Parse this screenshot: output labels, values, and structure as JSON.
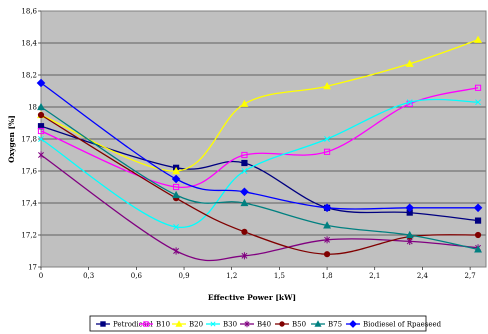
{
  "chart_data": {
    "type": "line",
    "title": "",
    "xlabel": "Effective Power [kW]",
    "ylabel": "Oxygen [%]",
    "xlim": [
      0,
      2.8
    ],
    "ylim": [
      17,
      18.6
    ],
    "x_ticks": [
      "0",
      "0,3",
      "0,6",
      "0,9",
      "1,2",
      "1,5",
      "1,8",
      "2,1",
      "2,4",
      "2,7"
    ],
    "y_ticks": [
      "17",
      "17,2",
      "17,4",
      "17,6",
      "17,8",
      "18",
      "18,2",
      "18,4",
      "18,6"
    ],
    "grid": "horizontal",
    "plot_background": "#c0c0c0",
    "legend_position": "bottom",
    "series": [
      {
        "name": "Petrodiesel",
        "color": "#000080",
        "marker": "square",
        "filled": true,
        "x": [
          0,
          0.85,
          1.28,
          1.8,
          2.32,
          2.75
        ],
        "y": [
          17.88,
          17.62,
          17.65,
          17.37,
          17.34,
          17.29
        ]
      },
      {
        "name": "B10",
        "color": "#ff00ff",
        "marker": "square",
        "filled": false,
        "x": [
          0,
          0.85,
          1.28,
          1.8,
          2.32,
          2.75
        ],
        "y": [
          17.85,
          17.5,
          17.7,
          17.72,
          18.02,
          18.12
        ]
      },
      {
        "name": "B20",
        "color": "#ffff00",
        "marker": "triangle",
        "filled": true,
        "x": [
          0,
          0.85,
          1.28,
          1.8,
          2.32,
          2.75
        ],
        "y": [
          17.95,
          17.6,
          18.02,
          18.13,
          18.27,
          18.42
        ]
      },
      {
        "name": "B30",
        "color": "#00ffff",
        "marker": "cross",
        "filled": false,
        "x": [
          0,
          0.85,
          1.28,
          1.8,
          2.32,
          2.75
        ],
        "y": [
          17.8,
          17.25,
          17.6,
          17.8,
          18.03,
          18.03
        ]
      },
      {
        "name": "B40",
        "color": "#800080",
        "marker": "star",
        "filled": false,
        "x": [
          0,
          0.85,
          1.28,
          1.8,
          2.32,
          2.75
        ],
        "y": [
          17.7,
          17.1,
          17.07,
          17.17,
          17.16,
          17.12
        ]
      },
      {
        "name": "B50",
        "color": "#800000",
        "marker": "circle",
        "filled": true,
        "x": [
          0,
          0.85,
          1.28,
          1.8,
          2.32,
          2.75
        ],
        "y": [
          17.95,
          17.43,
          17.22,
          17.08,
          17.19,
          17.2
        ]
      },
      {
        "name": "B75",
        "color": "#008080",
        "marker": "triangle",
        "filled": true,
        "x": [
          0,
          0.85,
          1.28,
          1.8,
          2.32,
          2.75
        ],
        "y": [
          18.0,
          17.45,
          17.4,
          17.26,
          17.2,
          17.11
        ]
      },
      {
        "name": "Biodiesel of Rpaeseed",
        "color": "#0000ff",
        "marker": "diamond",
        "filled": true,
        "x": [
          0,
          0.85,
          1.28,
          1.8,
          2.32,
          2.75
        ],
        "y": [
          18.15,
          17.55,
          17.47,
          17.37,
          17.37,
          17.37
        ]
      }
    ]
  }
}
